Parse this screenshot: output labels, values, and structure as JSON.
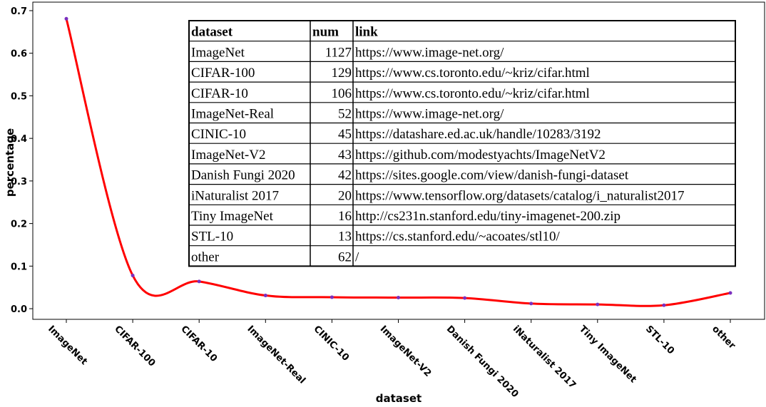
{
  "chart_data": {
    "type": "line",
    "xlabel": "dataset",
    "ylabel": "percentage",
    "categories": [
      "ImageNet",
      "CIFAR-100",
      "CIFAR-10",
      "ImageNet-Real",
      "CINIC-10",
      "ImageNet-V2",
      "Danish Fungi 2020",
      "iNaturalist 2017",
      "Tiny ImageNet",
      "STL-10",
      "other"
    ],
    "series": [
      {
        "values": [
          0.681,
          0.078,
          0.064,
          0.031,
          0.027,
          0.026,
          0.025,
          0.012,
          0.01,
          0.008,
          0.037
        ],
        "color": "#ff0000",
        "marker_color": "#7b2fbe"
      }
    ],
    "ylim": [
      -0.025,
      0.72
    ],
    "yticks": [
      0.0,
      0.1,
      0.2,
      0.3,
      0.4,
      0.5,
      0.6,
      0.7
    ],
    "grid": false,
    "table": {
      "headers": [
        "dataset",
        "num",
        "link"
      ],
      "rows": [
        [
          "ImageNet",
          "1127",
          "https://www.image-net.org/"
        ],
        [
          "CIFAR-100",
          "129",
          "https://www.cs.toronto.edu/~kriz/cifar.html"
        ],
        [
          "CIFAR-10",
          "106",
          "https://www.cs.toronto.edu/~kriz/cifar.html"
        ],
        [
          "ImageNet-Real",
          "52",
          "https://www.image-net.org/"
        ],
        [
          "CINIC-10",
          "45",
          "https://datashare.ed.ac.uk/handle/10283/3192"
        ],
        [
          "ImageNet-V2",
          "43",
          "https://github.com/modestyachts/ImageNetV2"
        ],
        [
          "Danish Fungi 2020",
          "42",
          "https://sites.google.com/view/danish-fungi-dataset"
        ],
        [
          "iNaturalist 2017",
          "20",
          "https://www.tensorflow.org/datasets/catalog/i_naturalist2017"
        ],
        [
          "Tiny ImageNet",
          "16",
          "http://cs231n.stanford.edu/tiny-imagenet-200.zip"
        ],
        [
          "STL-10",
          "13",
          "https://cs.stanford.edu/~acoates/stl10/"
        ],
        [
          "other",
          "62",
          "/"
        ]
      ]
    }
  }
}
